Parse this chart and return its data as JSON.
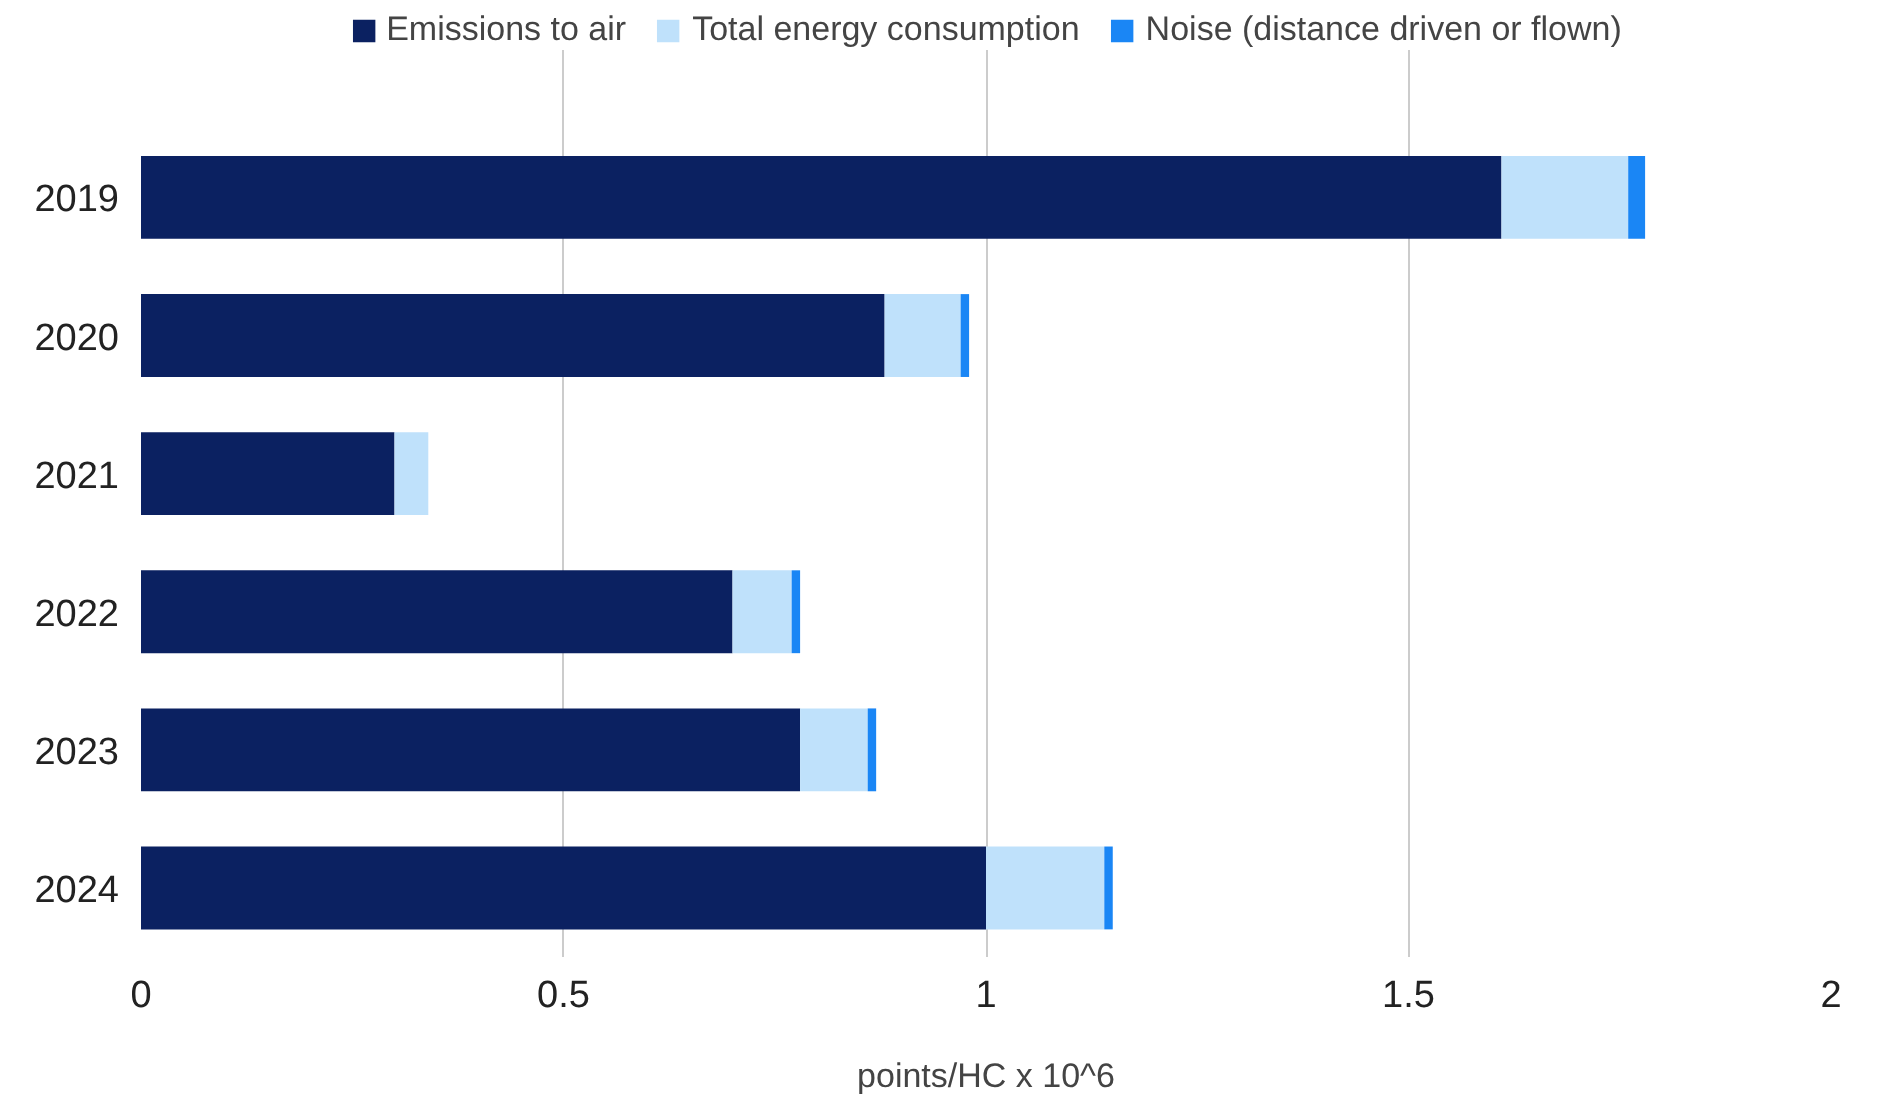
{
  "chart_data": {
    "type": "bar",
    "orientation": "horizontal",
    "stacked": true,
    "xlabel": "points/HC x 10^6",
    "categories": [
      "2019",
      "2020",
      "2021",
      "2022",
      "2023",
      "2024"
    ],
    "series": [
      {
        "name": "Emissions to air",
        "color": "#0b2161",
        "values": [
          1.61,
          0.88,
          0.3,
          0.7,
          0.78,
          1.0
        ]
      },
      {
        "name": "Total energy consumption",
        "color": "#bfe1fb",
        "values": [
          0.15,
          0.09,
          0.04,
          0.07,
          0.08,
          0.14
        ]
      },
      {
        "name": "Noise (distance driven or flown)",
        "color": "#1a86f5",
        "values": [
          0.02,
          0.01,
          0.0,
          0.01,
          0.01,
          0.01
        ]
      }
    ],
    "xlim": [
      0,
      2
    ],
    "xticks": [
      0,
      0.5,
      1,
      1.5,
      2
    ],
    "grid": "x",
    "legend": "top"
  }
}
